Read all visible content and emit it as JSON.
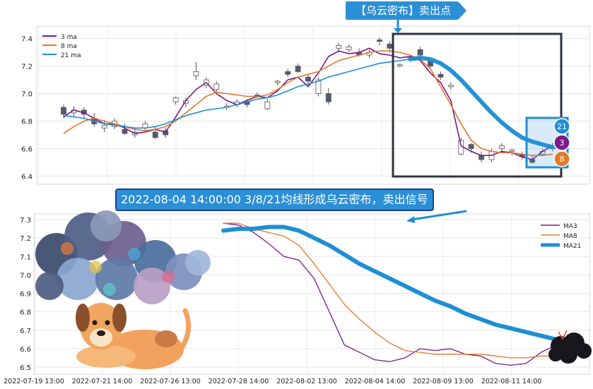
{
  "callout": {
    "top_label": "【乌云密布】卖出点",
    "subtitle": "2022-08-04 14:00:00 3/8/21均线形成乌云密布，卖出信号"
  },
  "colors": {
    "ma3": "#7b1a8a",
    "ma8": "#e07a2a",
    "ma21": "#1f8fd3",
    "up": "#ffffff",
    "down": "#555a70"
  },
  "chart_data": [
    {
      "type": "candlestick",
      "title": "",
      "xlabel": "",
      "ylabel": "",
      "ylim": [
        6.32,
        7.46
      ],
      "yticks": [
        6.4,
        6.6,
        6.8,
        7.0,
        7.2,
        7.4
      ],
      "legend_position": "top-left",
      "grid": true,
      "series": [
        {
          "name": "3 ma",
          "values": [
            6.83,
            6.88,
            6.86,
            6.82,
            6.78,
            6.78,
            6.75,
            6.71,
            6.72,
            6.74,
            6.72,
            6.83,
            6.95,
            7.03,
            7.08,
            7.0,
            6.95,
            6.92,
            6.95,
            6.98,
            6.97,
            7.02,
            7.1,
            7.12,
            7.05,
            7.15,
            7.27,
            7.31,
            7.29,
            7.3,
            7.33,
            7.29,
            7.28,
            7.26,
            7.27,
            7.24,
            7.15,
            7.08,
            6.95,
            6.62,
            6.58,
            6.55,
            6.55,
            6.58,
            6.57,
            6.54,
            6.52,
            6.58,
            6.62
          ]
        },
        {
          "name": "8 ma",
          "values": [
            6.71,
            6.76,
            6.8,
            6.82,
            6.8,
            6.78,
            6.76,
            6.74,
            6.73,
            6.74,
            6.76,
            6.8,
            6.86,
            6.92,
            6.98,
            7.01,
            7.0,
            6.99,
            6.98,
            6.98,
            6.99,
            7.03,
            7.08,
            7.12,
            7.14,
            7.16,
            7.2,
            7.24,
            7.26,
            7.28,
            7.3,
            7.31,
            7.31,
            7.3,
            7.28,
            7.25,
            7.18,
            7.05,
            6.92,
            6.78,
            6.66,
            6.6,
            6.58,
            6.57,
            6.57,
            6.56,
            6.55,
            6.55,
            6.56
          ]
        },
        {
          "name": "21 ma",
          "values": [
            6.84,
            6.83,
            6.82,
            6.8,
            6.78,
            6.77,
            6.76,
            6.75,
            6.75,
            6.76,
            6.78,
            6.81,
            6.84,
            6.86,
            6.88,
            6.89,
            6.9,
            6.92,
            6.94,
            6.96,
            6.97,
            6.99,
            7.02,
            7.05,
            7.07,
            7.09,
            7.12,
            7.14,
            7.16,
            7.18,
            7.2,
            7.22,
            7.23,
            7.24,
            7.25,
            7.26,
            7.25,
            7.22,
            7.17,
            7.1,
            7.02,
            6.94,
            6.86,
            6.79,
            6.73,
            6.68,
            6.65,
            6.63,
            6.61
          ]
        }
      ],
      "candles": [
        [
          6.9,
          6.85,
          6.92,
          6.82
        ],
        [
          6.86,
          6.88,
          6.91,
          6.83
        ],
        [
          6.88,
          6.85,
          6.9,
          6.82
        ],
        [
          6.82,
          6.78,
          6.86,
          6.76
        ],
        [
          6.75,
          6.77,
          6.81,
          6.72
        ],
        [
          6.76,
          6.8,
          6.82,
          6.74
        ],
        [
          6.74,
          6.71,
          6.78,
          6.7
        ],
        [
          6.7,
          6.72,
          6.75,
          6.68
        ],
        [
          6.75,
          6.78,
          6.8,
          6.73
        ],
        [
          6.72,
          6.68,
          6.76,
          6.67
        ],
        [
          6.73,
          6.7,
          6.75,
          6.68
        ],
        [
          6.94,
          6.97,
          6.98,
          6.92
        ],
        [
          6.93,
          6.95,
          6.97,
          6.9
        ],
        [
          7.13,
          7.16,
          7.23,
          7.1
        ],
        [
          7.06,
          7.1,
          7.12,
          7.04
        ],
        [
          7.03,
          7.07,
          7.09,
          7.0
        ],
        [
          6.9,
          6.91,
          6.93,
          6.88
        ],
        [
          6.92,
          6.94,
          6.96,
          6.9
        ],
        [
          6.94,
          6.92,
          6.96,
          6.9
        ],
        [
          6.99,
          6.98,
          7.01,
          6.97
        ],
        [
          6.89,
          6.94,
          6.96,
          6.88
        ],
        [
          7.08,
          7.09,
          7.1,
          7.06
        ],
        [
          7.16,
          7.14,
          7.18,
          7.12
        ],
        [
          7.2,
          7.16,
          7.22,
          7.15
        ],
        [
          7.12,
          7.09,
          7.14,
          7.06
        ],
        [
          7.0,
          7.1,
          7.12,
          6.98
        ],
        [
          7.0,
          6.94,
          7.04,
          6.92
        ],
        [
          7.33,
          7.35,
          7.37,
          7.3
        ],
        [
          7.32,
          7.34,
          7.36,
          7.3
        ],
        [
          7.3,
          7.28,
          7.33,
          7.27
        ],
        [
          7.28,
          7.3,
          7.32,
          7.26
        ],
        [
          7.39,
          7.38,
          7.41,
          7.35
        ],
        [
          7.36,
          7.33,
          7.38,
          7.3
        ],
        [
          7.2,
          7.21,
          7.22,
          7.19
        ],
        [
          7.26,
          7.27,
          7.28,
          7.24
        ],
        [
          7.32,
          7.28,
          7.34,
          7.26
        ],
        [
          7.24,
          7.2,
          7.26,
          7.18
        ],
        [
          7.14,
          7.12,
          7.16,
          7.1
        ],
        [
          7.05,
          7.06,
          7.08,
          7.03
        ],
        [
          6.56,
          6.66,
          6.68,
          6.55
        ],
        [
          6.63,
          6.6,
          6.64,
          6.57
        ],
        [
          6.55,
          6.52,
          6.58,
          6.5
        ],
        [
          6.52,
          6.58,
          6.6,
          6.5
        ],
        [
          6.6,
          6.62,
          6.64,
          6.57
        ],
        [
          6.58,
          6.59,
          6.6,
          6.55
        ],
        [
          6.56,
          6.54,
          6.58,
          6.52
        ],
        [
          6.52,
          6.5,
          6.55,
          6.49
        ],
        [
          6.56,
          6.58,
          6.6,
          6.55
        ],
        [
          6.6,
          6.62,
          6.64,
          6.58
        ]
      ],
      "markers": [
        "21",
        "3",
        "8"
      ]
    },
    {
      "type": "line",
      "title": "",
      "xlabel": "",
      "ylabel": "",
      "ylim": [
        6.48,
        7.32
      ],
      "yticks": [
        6.5,
        6.6,
        6.7,
        6.8,
        6.9,
        7.0,
        7.1,
        7.2,
        7.3
      ],
      "x_tick_labels": [
        "2022-07-19 13:00",
        "2022-07-21 14:00",
        "2022-07-26 13:00",
        "2022-07-28 14:00",
        "2022-08-02 13:00",
        "2022-08-04 14:00",
        "2022-08-09 13:00",
        "2022-08-11 14:00"
      ],
      "legend_position": "top-right",
      "grid": true,
      "series": [
        {
          "name": "MA3",
          "values": [
            7.28,
            7.27,
            7.23,
            7.17,
            7.1,
            7.08,
            6.98,
            6.8,
            6.62,
            6.58,
            6.54,
            6.53,
            6.55,
            6.6,
            6.59,
            6.6,
            6.57,
            6.56,
            6.52,
            6.51,
            6.52,
            6.58,
            6.62
          ]
        },
        {
          "name": "MA8",
          "values": [
            7.28,
            7.28,
            7.25,
            7.23,
            7.21,
            7.16,
            7.06,
            6.95,
            6.84,
            6.76,
            6.69,
            6.63,
            6.59,
            6.58,
            6.57,
            6.57,
            6.57,
            6.57,
            6.56,
            6.55,
            6.55,
            6.56,
            6.56
          ]
        },
        {
          "name": "MA21",
          "values": [
            7.24,
            7.25,
            7.25,
            7.26,
            7.26,
            7.24,
            7.2,
            7.16,
            7.11,
            7.06,
            7.02,
            6.98,
            6.94,
            6.9,
            6.86,
            6.83,
            6.79,
            6.76,
            6.73,
            6.71,
            6.69,
            6.67,
            6.65
          ]
        }
      ]
    }
  ]
}
